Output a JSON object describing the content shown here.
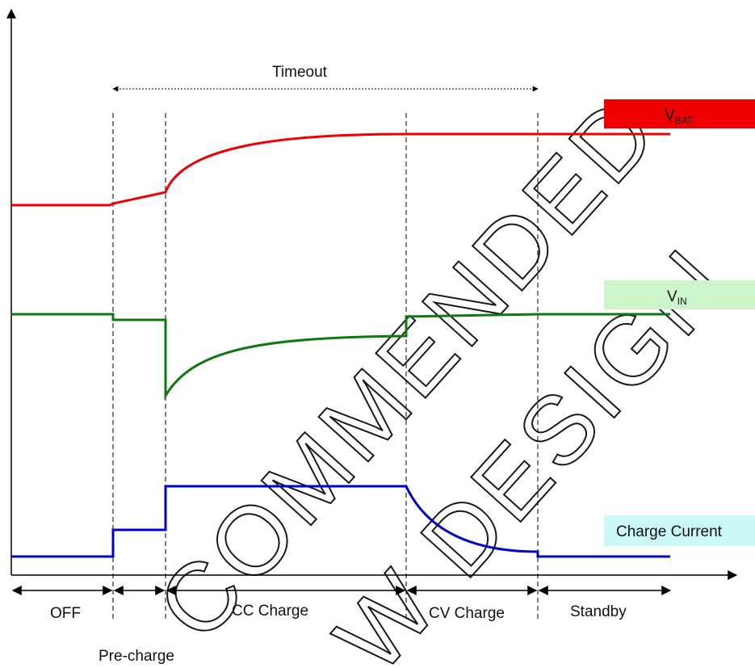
{
  "legend": {
    "vbat": {
      "main": "V",
      "sub": "BAT",
      "color": "#ee0000"
    },
    "vin": {
      "main": "V",
      "sub": "IN",
      "color": "#ccf5cc"
    },
    "current": {
      "label": "Charge Current",
      "color": "#ccf8f8"
    }
  },
  "timeout_label": "Timeout",
  "phases": {
    "off": "OFF",
    "precharge": "Pre-charge",
    "cc": "CC Charge",
    "cv": "CV Charge",
    "standby": "Standby"
  },
  "trace_colors": {
    "vbat": "#ee0000",
    "vin": "#117711",
    "current": "#0000cc"
  },
  "watermark": {
    "line1": "COMMENDED",
    "line2": "W DESIGN"
  }
}
